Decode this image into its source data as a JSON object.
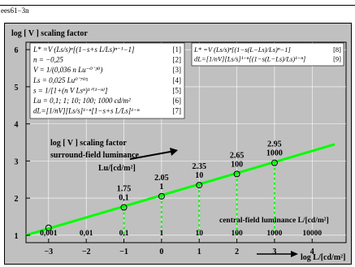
{
  "page_label": "ees61−3n",
  "chart_data": {
    "type": "line",
    "title": "log [ V ] scaling factor",
    "xlabel": "log L/[cd/m²]",
    "secondary_xlabel": "central-field luminance L/[cd/m²]",
    "annotation_line1": "log [ V ] scaling factor",
    "annotation_line2": "surround-field luminance",
    "annotation_line3": "Lu/[cd/m²]",
    "xlim": [
      -3.6,
      4.9
    ],
    "ylim": [
      0.8,
      6.2
    ],
    "x_ticks": [
      "−3",
      "−2",
      "−1",
      "0",
      "1",
      "2",
      "3",
      "4"
    ],
    "x_tick_values": [
      -3,
      -2,
      -1,
      0,
      1,
      2,
      3,
      4
    ],
    "lum_ticks": [
      "0,001",
      "0,01",
      "0,1",
      "1",
      "10",
      "100",
      "1000",
      "10000"
    ],
    "y_ticks": [
      "1",
      "2",
      "3",
      "4",
      "5",
      "6"
    ],
    "y_tick_values": [
      1,
      2,
      3,
      4,
      5,
      6
    ],
    "grid": true,
    "line_color": "#00ff00",
    "series": [
      {
        "x": [
          -3.6,
          4.6
        ],
        "y": [
          1.0,
          3.45
        ]
      }
    ],
    "markers": [
      {
        "x": -3,
        "y": 1.2,
        "value": "",
        "lum": "0,001"
      },
      {
        "x": -1,
        "y": 1.75,
        "value": "1.75",
        "lum": "0,1"
      },
      {
        "x": 0,
        "y": 2.05,
        "value": "2.05",
        "lum": "1"
      },
      {
        "x": 1,
        "y": 2.35,
        "value": "2.35",
        "lum": "10"
      },
      {
        "x": 2,
        "y": 2.65,
        "value": "2.65",
        "lum": "100"
      },
      {
        "x": 3,
        "y": 2.95,
        "value": "2.95",
        "lum": "1000"
      }
    ],
    "formulas_left": [
      {
        "text": "L* =V (Ls/s)ⁿ[(1−s+s L/Ls)ⁿ⁻¹−1]",
        "tag": "[1]"
      },
      {
        "text": "n = −0,25",
        "tag": "[2]"
      },
      {
        "text": "V = 1/(0,036 n Lu⁻⁰˙³⁰)",
        "tag": "[3]"
      },
      {
        "text": "Ls = 0,025 Lu⁰˙⁷⁰⁵",
        "tag": "[4]"
      },
      {
        "text": "s = 1/[1+(n V Lsⁿ)¹ᐟ⁽¹⁻ⁿ⁾]",
        "tag": "[5]"
      },
      {
        "text": "Lu = 0,1; 1; 10; 100; 1000 cd/m²",
        "tag": "[6]"
      },
      {
        "text": "dL=[1/nV][Ls/s]¹⁻ⁿ[1−s+s L/Ls]¹⁻ⁿ",
        "tag": "[7]"
      }
    ],
    "formulas_right": [
      {
        "text": "L* =V (Ls/s)ⁿ[(1−s(L−Ls)/Ls)ⁿ−1]",
        "tag": "[8]"
      },
      {
        "text": "dL=[1/nV][Ls/s]¹⁻ⁿ[(1−s(L−Ls)/Ls)¹⁻ⁿ]",
        "tag": "[9]"
      }
    ]
  }
}
